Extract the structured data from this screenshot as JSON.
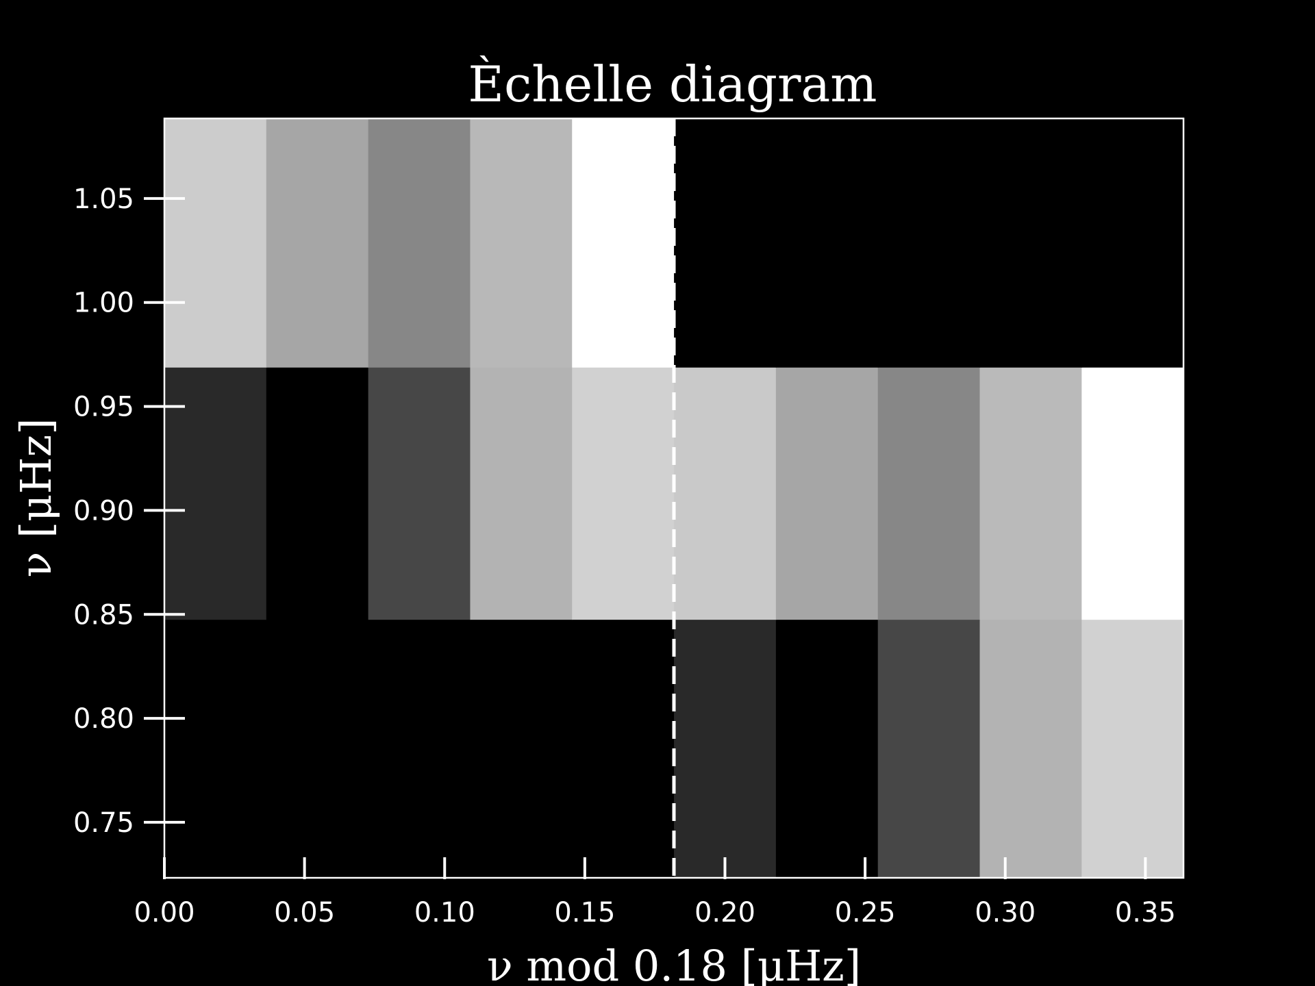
{
  "chart_data": {
    "type": "heatmap",
    "title": "Èchelle diagram",
    "xlabel": "ν mod 0.18 [μHz]",
    "ylabel": "ν [μHz]",
    "xlim": [
      0.0,
      0.3636
    ],
    "ylim": [
      0.7233,
      1.0885
    ],
    "x_ticks": [
      "0.00",
      "0.05",
      "0.10",
      "0.15",
      "0.20",
      "0.25",
      "0.30",
      "0.35"
    ],
    "y_ticks": [
      "0.75",
      "0.80",
      "0.85",
      "0.90",
      "0.95",
      "1.00",
      "1.05"
    ],
    "x_tick_values": [
      0.0,
      0.05,
      0.1,
      0.15,
      0.2,
      0.25,
      0.3,
      0.35
    ],
    "y_tick_values": [
      0.75,
      0.8,
      0.85,
      0.9,
      0.95,
      1.0,
      1.05
    ],
    "x_bin_edges": [
      0.0,
      0.03636,
      0.07273,
      0.10909,
      0.14545,
      0.18182,
      0.21818,
      0.25455,
      0.29091,
      0.32727,
      0.36364
    ],
    "y_bin_edges": [
      0.7233,
      0.8476,
      0.9689,
      1.0885
    ],
    "colormap": "gray",
    "cell_values": [
      [
        0.0,
        0.0,
        0.0,
        0.0,
        0.0,
        0.16,
        0.0,
        0.28,
        0.7,
        0.82
      ],
      [
        0.16,
        0.0,
        0.28,
        0.7,
        0.82,
        0.79,
        0.65,
        0.53,
        0.73,
        1.0
      ],
      [
        0.8,
        0.65,
        0.53,
        0.72,
        1.0,
        0.0,
        0.0,
        0.0,
        0.0,
        0.0
      ]
    ],
    "vertical_line": {
      "x": 0.1818,
      "style": "dashed",
      "color": "#ffffff"
    },
    "grid": false,
    "colors": {
      "background": "#000000",
      "foreground": "#ffffff"
    }
  }
}
